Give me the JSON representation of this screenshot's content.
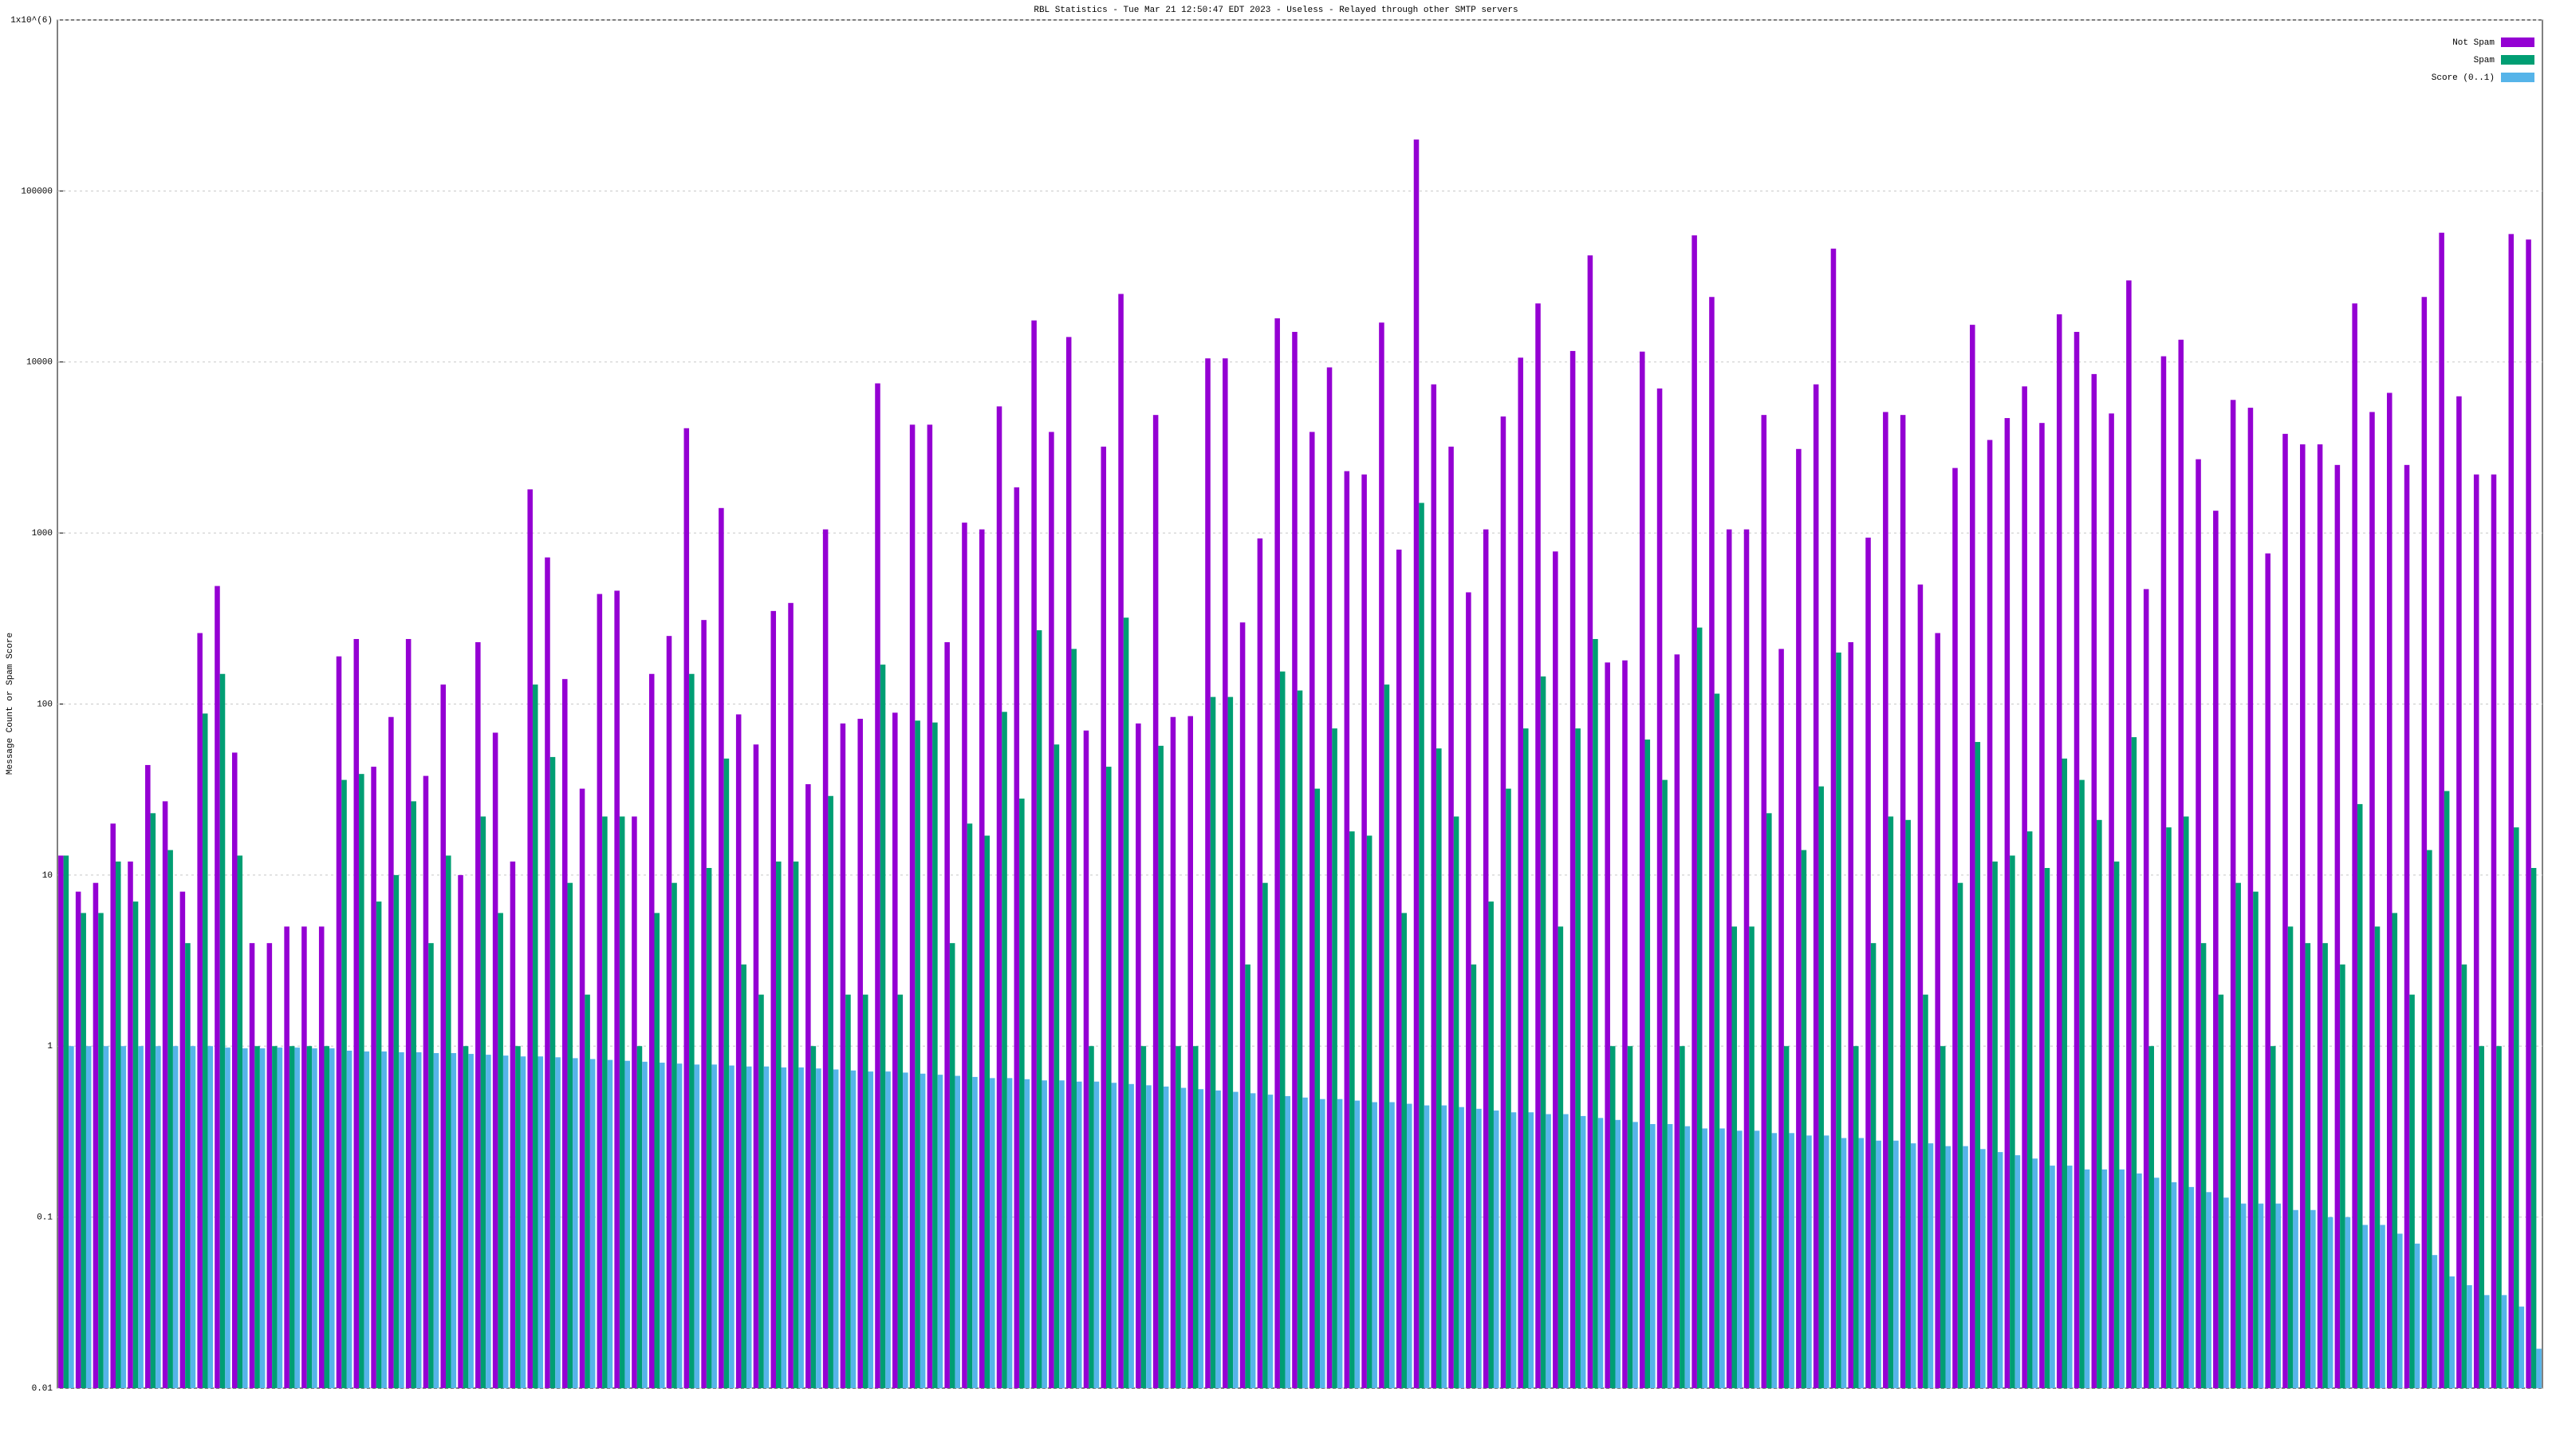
{
  "chart_data": {
    "type": "bar",
    "title": "RBL Statistics - Tue Mar 21 12:50:47 EDT 2023 - Useless - Relayed through other SMTP servers",
    "y_label": "Message Count or Spam Score",
    "log_scale": true,
    "grid": true,
    "legend": "upper right",
    "ylim": [
      0.01,
      1000000
    ],
    "yticks": [
      0.01,
      0.1,
      1,
      10,
      100,
      1000,
      10000,
      100000,
      {
        "value": 1000000,
        "label": "1x10^(6)"
      }
    ],
    "series": [
      {
        "name": "Not Spam",
        "color": "#9400d3",
        "values": [
          13,
          8,
          9,
          20,
          12,
          44,
          27,
          8,
          260,
          490,
          52,
          4,
          4,
          5,
          5,
          5,
          190,
          240,
          43,
          84,
          240,
          38,
          130,
          10,
          230,
          68,
          12,
          1800,
          720,
          140,
          32,
          440,
          460,
          22,
          150,
          250,
          4100,
          310,
          1400,
          87,
          58,
          350,
          390,
          34,
          1050,
          77,
          82,
          7500,
          89,
          4300,
          4300,
          230,
          1150,
          1050,
          5500,
          1850,
          17500,
          3900,
          14000,
          70,
          3200,
          25000,
          77,
          4900,
          84,
          85,
          10500,
          10500,
          300,
          930,
          18000,
          15000,
          3900,
          9300,
          2300,
          2200,
          17000,
          800,
          200000,
          7400,
          3200,
          450,
          1050,
          4800,
          10600,
          22000,
          780,
          11600,
          42000,
          175,
          180,
          11500,
          7000,
          195,
          55000,
          24000,
          1050,
          1050,
          4900,
          210,
          3100,
          7400,
          46000,
          230,
          940,
          5100,
          4900,
          500,
          260,
          2400,
          16500,
          3500,
          4700,
          7200,
          4400,
          19000,
          15000,
          8500,
          5000,
          30000,
          470,
          10800,
          13500,
          2700,
          1350,
          6000,
          5400,
          760,
          3800,
          3300,
          3300,
          2500,
          22000,
          5100,
          6600,
          2500,
          24000,
          57000,
          6300,
          2200,
          2200,
          56000,
          52000
        ]
      },
      {
        "name": "Spam",
        "color": "#009e73",
        "values": [
          13,
          6,
          6,
          12,
          7,
          23,
          14,
          4,
          88,
          150,
          13,
          1,
          1,
          1,
          1,
          1,
          36,
          39,
          7,
          10,
          27,
          4,
          13,
          1,
          22,
          6,
          1,
          130,
          49,
          9,
          2,
          22,
          22,
          1,
          6,
          9,
          150,
          11,
          48,
          3,
          2,
          12,
          12,
          1,
          29,
          2,
          2,
          170,
          2,
          80,
          78,
          4,
          20,
          17,
          90,
          28,
          270,
          58,
          210,
          1,
          43,
          320,
          1,
          57,
          1,
          1,
          110,
          110,
          3,
          9,
          155,
          120,
          32,
          72,
          18,
          17,
          130,
          6,
          1500,
          55,
          22,
          3,
          7,
          32,
          72,
          145,
          5,
          72,
          240,
          1,
          1,
          62,
          36,
          1,
          280,
          115,
          5,
          5,
          23,
          1,
          14,
          33,
          200,
          1,
          4,
          22,
          21,
          2,
          1,
          9,
          60,
          12,
          13,
          18,
          11,
          48,
          36,
          21,
          12,
          64,
          1,
          19,
          22,
          4,
          2,
          9,
          8,
          1,
          5,
          4,
          4,
          3,
          26,
          5,
          6,
          2,
          14,
          31,
          3,
          1,
          1,
          19,
          11
        ]
      },
      {
        "name": "Score (0..1)",
        "color": "#56b4e9",
        "values": [
          1,
          1,
          1,
          1,
          1,
          1,
          1,
          1,
          1,
          0.98,
          0.97,
          0.97,
          0.98,
          0.98,
          0.97,
          0.97,
          0.94,
          0.93,
          0.93,
          0.92,
          0.92,
          0.91,
          0.91,
          0.9,
          0.89,
          0.88,
          0.87,
          0.87,
          0.86,
          0.85,
          0.84,
          0.83,
          0.82,
          0.81,
          0.8,
          0.79,
          0.78,
          0.78,
          0.77,
          0.76,
          0.76,
          0.75,
          0.75,
          0.74,
          0.73,
          0.72,
          0.71,
          0.71,
          0.7,
          0.69,
          0.68,
          0.67,
          0.66,
          0.65,
          0.65,
          0.64,
          0.63,
          0.63,
          0.62,
          0.62,
          0.61,
          0.6,
          0.59,
          0.58,
          0.57,
          0.56,
          0.55,
          0.54,
          0.53,
          0.52,
          0.51,
          0.5,
          0.49,
          0.49,
          0.48,
          0.47,
          0.47,
          0.46,
          0.45,
          0.45,
          0.44,
          0.43,
          0.42,
          0.41,
          0.41,
          0.4,
          0.4,
          0.39,
          0.38,
          0.37,
          0.36,
          0.35,
          0.35,
          0.34,
          0.33,
          0.33,
          0.32,
          0.32,
          0.31,
          0.31,
          0.3,
          0.3,
          0.29,
          0.29,
          0.28,
          0.28,
          0.27,
          0.27,
          0.26,
          0.26,
          0.25,
          0.24,
          0.23,
          0.22,
          0.2,
          0.2,
          0.19,
          0.19,
          0.19,
          0.18,
          0.17,
          0.16,
          0.15,
          0.14,
          0.13,
          0.12,
          0.12,
          0.12,
          0.11,
          0.11,
          0.1,
          0.1,
          0.09,
          0.09,
          0.08,
          0.07,
          0.06,
          0.045,
          0.04,
          0.035,
          0.035,
          0.03,
          0.017
        ]
      }
    ]
  }
}
